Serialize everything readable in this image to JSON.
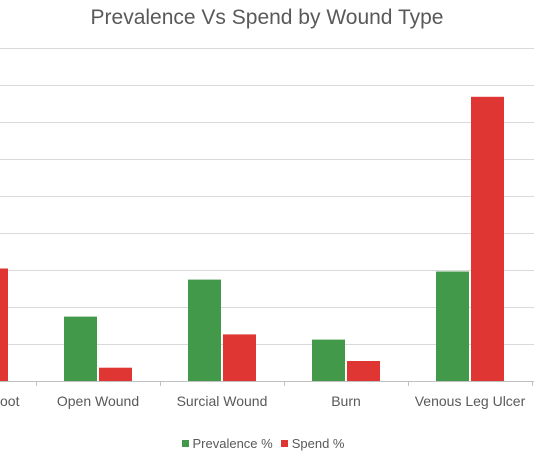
{
  "chart_data": {
    "type": "bar",
    "title": "Prevalence Vs Spend by Wound Type",
    "xlabel": "",
    "ylabel": "",
    "grid": true,
    "legend_position": "bottom",
    "categories": [
      "Diabetic Foot",
      "Open Wound",
      "Surcial Wound",
      "Burn",
      "Venous Leg Ulcer"
    ],
    "category_labels_visible": [
      "oot",
      "Open Wound",
      "Surcial Wound",
      "Burn",
      "Venous Leg Ulcer"
    ],
    "ylim": [
      0,
      45
    ],
    "series": [
      {
        "name": "Prevalence %",
        "color": "#43994a",
        "values": [
          null,
          8.7,
          13.7,
          5.6,
          14.8
        ]
      },
      {
        "name": "Spend %",
        "color": "#df3633",
        "values": [
          15.2,
          1.8,
          6.3,
          2.7,
          38.4
        ]
      }
    ]
  }
}
